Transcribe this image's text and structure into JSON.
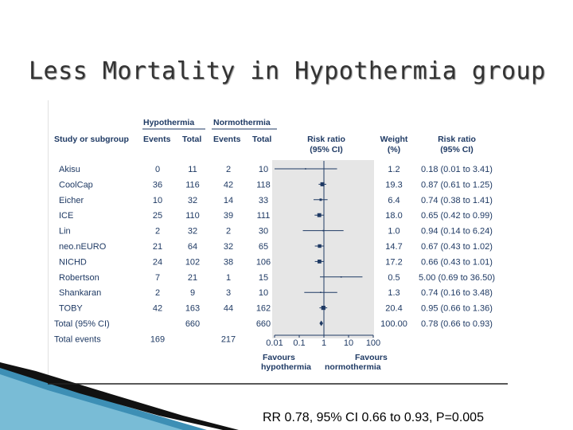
{
  "slide": {
    "title": "Less Mortality in Hypothermia group",
    "footer": "RR 0.78, 95% CI 0.66 to 0.93, P=0.005"
  },
  "colors": {
    "ink": "#1f3a64",
    "band": "#e6e6e6",
    "teal": "#3d8fb5"
  },
  "chart_data": {
    "type": "forest",
    "headers": {
      "study": "Study or subgroup",
      "group1": "Hypothermia",
      "group2": "Normothermia",
      "events": "Events",
      "total": "Total",
      "rr_col_1": "Risk ratio",
      "rr_col_2": "(95% CI)",
      "weight_1": "Weight",
      "weight_2": "(%)",
      "rrci_1": "Risk ratio",
      "rrci_2": "(95% CI)"
    },
    "studies": [
      {
        "name": "Akisu",
        "e1": "0",
        "t1": "11",
        "e2": "2",
        "t2": "10",
        "rr": 0.18,
        "lo": 0.01,
        "hi": 3.41,
        "weight": "1.2",
        "ci_text": "0.18 (0.01 to 3.41)"
      },
      {
        "name": "CoolCap",
        "e1": "36",
        "t1": "116",
        "e2": "42",
        "t2": "118",
        "rr": 0.87,
        "lo": 0.61,
        "hi": 1.25,
        "weight": "19.3",
        "ci_text": "0.87 (0.61 to 1.25)"
      },
      {
        "name": "Eicher",
        "e1": "10",
        "t1": "32",
        "e2": "14",
        "t2": "33",
        "rr": 0.74,
        "lo": 0.38,
        "hi": 1.41,
        "weight": "6.4",
        "ci_text": "0.74 (0.38 to 1.41)"
      },
      {
        "name": "ICE",
        "e1": "25",
        "t1": "110",
        "e2": "39",
        "t2": "111",
        "rr": 0.65,
        "lo": 0.42,
        "hi": 0.99,
        "weight": "18.0",
        "ci_text": "0.65 (0.42 to 0.99)"
      },
      {
        "name": "Lin",
        "e1": "2",
        "t1": "32",
        "e2": "2",
        "t2": "30",
        "rr": 0.94,
        "lo": 0.14,
        "hi": 6.24,
        "weight": "1.0",
        "ci_text": "0.94 (0.14 to 6.24)"
      },
      {
        "name": "neo.nEURO",
        "e1": "21",
        "t1": "64",
        "e2": "32",
        "t2": "65",
        "rr": 0.67,
        "lo": 0.43,
        "hi": 1.02,
        "weight": "14.7",
        "ci_text": "0.67 (0.43 to 1.02)"
      },
      {
        "name": "NICHD",
        "e1": "24",
        "t1": "102",
        "e2": "38",
        "t2": "106",
        "rr": 0.66,
        "lo": 0.43,
        "hi": 1.01,
        "weight": "17.2",
        "ci_text": "0.66 (0.43 to 1.01)"
      },
      {
        "name": "Robertson",
        "e1": "7",
        "t1": "21",
        "e2": "1",
        "t2": "15",
        "rr": 5.0,
        "lo": 0.69,
        "hi": 36.5,
        "weight": "0.5",
        "ci_text": "5.00 (0.69 to 36.50)"
      },
      {
        "name": "Shankaran",
        "e1": "2",
        "t1": "9",
        "e2": "3",
        "t2": "10",
        "rr": 0.74,
        "lo": 0.16,
        "hi": 3.48,
        "weight": "1.3",
        "ci_text": "0.74 (0.16 to 3.48)"
      },
      {
        "name": "TOBY",
        "e1": "42",
        "t1": "163",
        "e2": "44",
        "t2": "162",
        "rr": 0.95,
        "lo": 0.66,
        "hi": 1.36,
        "weight": "20.4",
        "ci_text": "0.95 (0.66 to 1.36)"
      }
    ],
    "pooled": {
      "name": "Total (95% CI)",
      "t1": "660",
      "t2": "660",
      "rr": 0.78,
      "lo": 0.66,
      "hi": 0.93,
      "weight": "100.00",
      "ci_text": "0.78 (0.66 to 0.93)"
    },
    "total_events": {
      "name": "Total events",
      "e1": "169",
      "e2": "217"
    },
    "x_axis": {
      "scale": "log",
      "ticks": [
        0.01,
        0.1,
        1,
        10,
        100
      ],
      "tick_labels": [
        "0.01",
        "0.1",
        "1",
        "10",
        "100"
      ],
      "xlim": [
        0.01,
        100
      ]
    },
    "favours": {
      "left_1": "Favours",
      "left_2": "hypothermia",
      "right_1": "Favours",
      "right_2": "normothermia"
    }
  }
}
